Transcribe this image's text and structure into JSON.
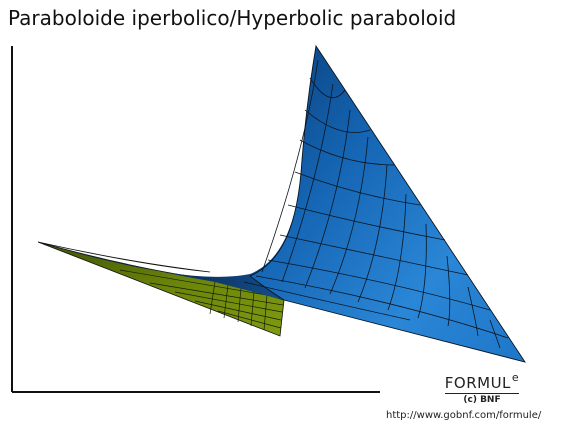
{
  "title": "Paraboloide iperbolico/Hyperbolic paraboloid",
  "brand": {
    "word": "FORMUL",
    "superscript": "e",
    "subtitle": "(c) BNF"
  },
  "url": "http://www.gobnf.com/formule/",
  "colors": {
    "surface_front": "#1a73c6",
    "surface_back": "#6f8a08",
    "mesh": "#0b1520",
    "axis": "#111111"
  }
}
